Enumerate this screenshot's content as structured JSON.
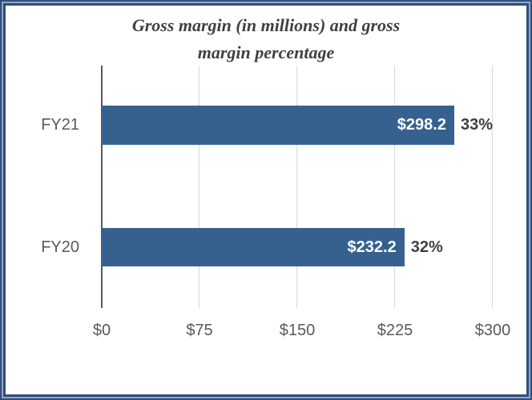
{
  "chart_data": {
    "type": "bar",
    "orientation": "horizontal",
    "title": "Gross margin (in millions) and gross margin percentage",
    "title_lines": [
      "Gross margin (in millions) and gross",
      "margin percentage"
    ],
    "categories": [
      "FY21",
      "FY20"
    ],
    "values": [
      298.2,
      232.2
    ],
    "value_labels": [
      "$298.2",
      "$232.2"
    ],
    "pct_values": [
      33,
      32
    ],
    "pct_labels": [
      "33%",
      "32%"
    ],
    "xlim": [
      0,
      300
    ],
    "x_tick_interval": 75,
    "x_ticks": [
      "$0",
      "$75",
      "$150",
      "$225",
      "$300"
    ],
    "grid": true,
    "legend": false,
    "colors": {
      "bar": "#36618F",
      "frame_border": "#2F4F7C",
      "frame_border_light": "#95A4C2",
      "axis_line": "#595959",
      "gridline": "#D9D9D9",
      "title_text": "#404040",
      "tick_text": "#595959",
      "value_label_text": "#FFFFFF",
      "pct_label_text": "#404040"
    }
  }
}
